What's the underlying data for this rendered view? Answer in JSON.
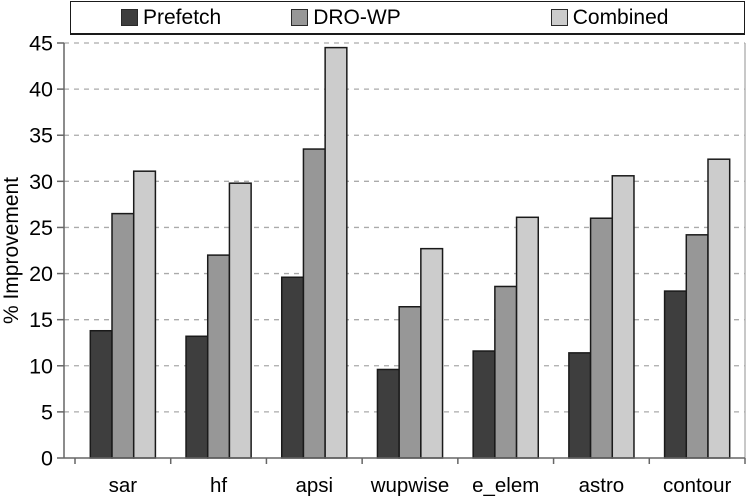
{
  "legend": {
    "items": [
      {
        "label": "Prefetch",
        "color": "#3e3e3e"
      },
      {
        "label": "DRO-WP",
        "color": "#979797"
      },
      {
        "label": "Combined",
        "color": "#cccccc"
      }
    ]
  },
  "chart_data": {
    "type": "bar",
    "title": "",
    "xlabel": "",
    "ylabel": "% Improvement",
    "ylim": [
      0,
      45
    ],
    "ytick_step": 5,
    "yticks": [
      0,
      5,
      10,
      15,
      20,
      25,
      30,
      35,
      40,
      45
    ],
    "grid": "horizontal-dashed",
    "legend_position": "top",
    "categories": [
      "sar",
      "hf",
      "apsi",
      "wupwise",
      "e_elem",
      "astro",
      "contour"
    ],
    "series": [
      {
        "name": "Prefetch",
        "color": "#3e3e3e",
        "values": [
          13.8,
          13.2,
          19.6,
          9.6,
          11.6,
          11.4,
          18.1
        ]
      },
      {
        "name": "DRO-WP",
        "color": "#979797",
        "values": [
          26.5,
          22.0,
          33.5,
          16.4,
          18.6,
          26.0,
          24.2
        ]
      },
      {
        "name": "Combined",
        "color": "#cccccc",
        "values": [
          31.1,
          29.8,
          44.5,
          22.7,
          26.1,
          30.6,
          32.4
        ]
      }
    ]
  },
  "style": {
    "axis_color": "#666666",
    "gridline_color": "#aaaaaa",
    "bar_border_color": "#1a1a1a",
    "background": "#ffffff"
  }
}
